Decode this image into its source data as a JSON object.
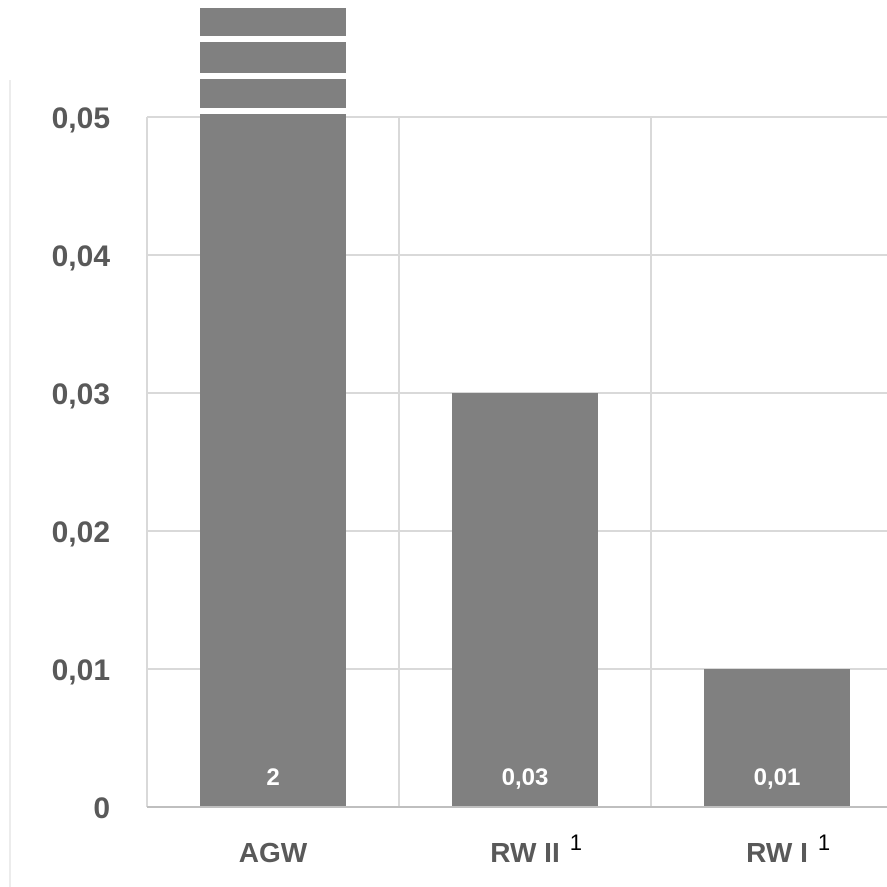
{
  "chart_data": {
    "type": "bar",
    "categories": [
      "AGW",
      "RW II",
      "RW I"
    ],
    "category_superscripts": [
      "",
      "1",
      "1"
    ],
    "values": [
      2,
      0.03,
      0.01
    ],
    "data_labels": [
      "2",
      "0,03",
      "0,01"
    ],
    "axis_break": true,
    "ylim": [
      0,
      0.05
    ],
    "yticks": [
      0,
      0.01,
      0.02,
      0.03,
      0.04,
      0.05
    ],
    "ytick_labels": [
      "0",
      "0,01",
      "0,02",
      "0,03",
      "0,04",
      "0,05"
    ],
    "grid": true,
    "colors": {
      "bar": "#808080",
      "grid": "#d9d9d9",
      "axis": "#bfbfbf",
      "tick_text": "#595959"
    }
  }
}
